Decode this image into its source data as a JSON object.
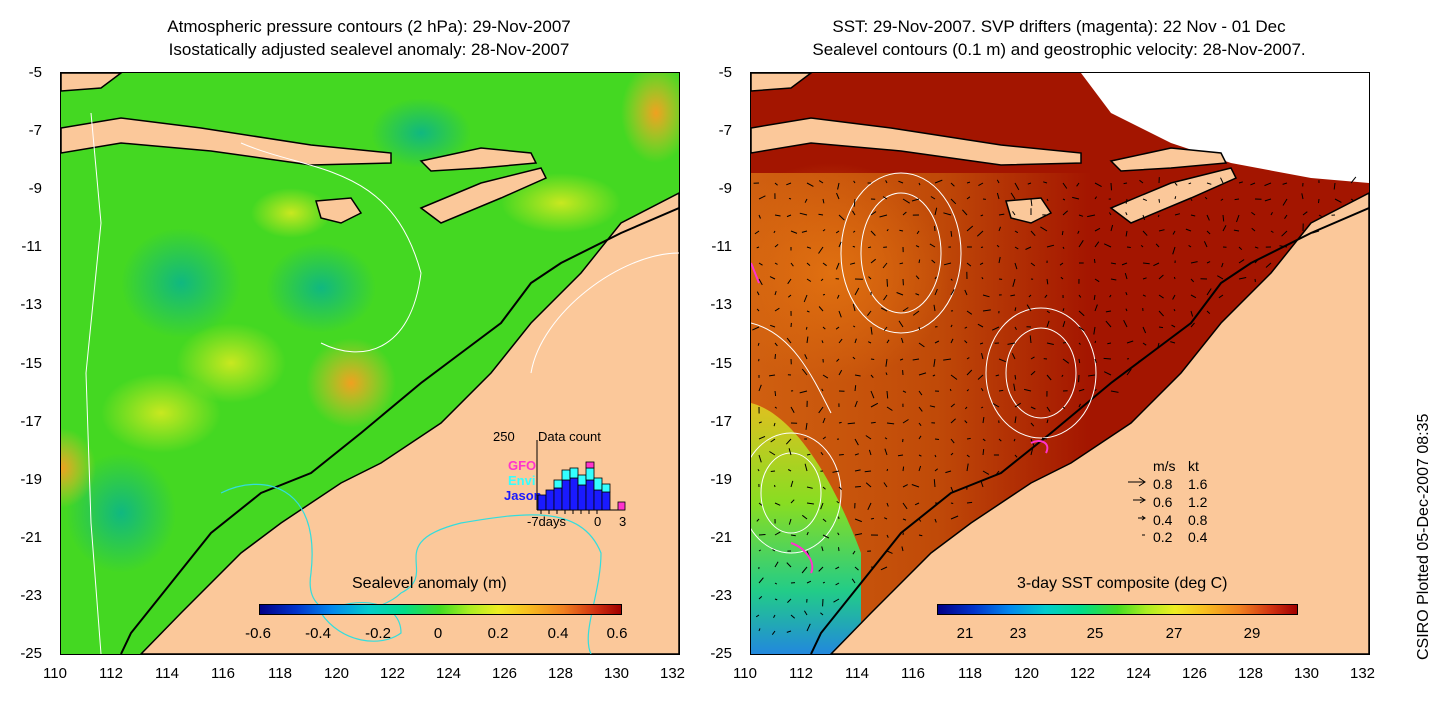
{
  "left_panel": {
    "title_line1": "Atmospheric pressure contours (2 hPa): 29-Nov-2007",
    "title_line2": "Isostatically adjusted sealevel anomaly: 28-Nov-2007",
    "colorbar_label": "Sealevel anomaly (m)",
    "colorbar_ticks": [
      "-0.6",
      "-0.4",
      "-0.2",
      "0",
      "0.2",
      "0.4",
      "0.6"
    ],
    "histogram": {
      "max_label": "250",
      "title": "Data count",
      "x_left": "-7days",
      "x_mid": "0",
      "x_right": "3",
      "missions": [
        {
          "name": "GFO",
          "color": "#ff33cc"
        },
        {
          "name": "Envi",
          "color": "#33ffff"
        },
        {
          "name": "Jason",
          "color": "#1a1aff"
        }
      ]
    }
  },
  "right_panel": {
    "title_line1": "SST: 29-Nov-2007. SVP drifters (magenta): 22 Nov - 01 Dec",
    "title_line2": "Sealevel contours (0.1 m) and geostrophic velocity: 28-Nov-2007.",
    "colorbar_label": "3-day SST composite (deg C)",
    "colorbar_ticks": [
      "21",
      "23",
      "25",
      "27",
      "29"
    ],
    "velocity_legend": {
      "header_ms": "m/s",
      "header_kt": "kt",
      "rows": [
        {
          "ms": "0.8",
          "kt": "1.6"
        },
        {
          "ms": "0.6",
          "kt": "1.2"
        },
        {
          "ms": "0.4",
          "kt": "0.8"
        },
        {
          "ms": "0.2",
          "kt": "0.4"
        }
      ]
    }
  },
  "axes": {
    "y_ticks": [
      "-5",
      "-7",
      "-9",
      "-11",
      "-13",
      "-15",
      "-17",
      "-19",
      "-21",
      "-23",
      "-25"
    ],
    "x_ticks": [
      "110",
      "112",
      "114",
      "116",
      "118",
      "120",
      "122",
      "124",
      "126",
      "128",
      "130",
      "132"
    ]
  },
  "credit": "CSIRO Plotted 05-Dec-2007 08:35",
  "colors": {
    "land": "#fbc89a",
    "ocean_left": "#44dd22",
    "ocean_right": "#a31500",
    "coast": "#000000"
  }
}
